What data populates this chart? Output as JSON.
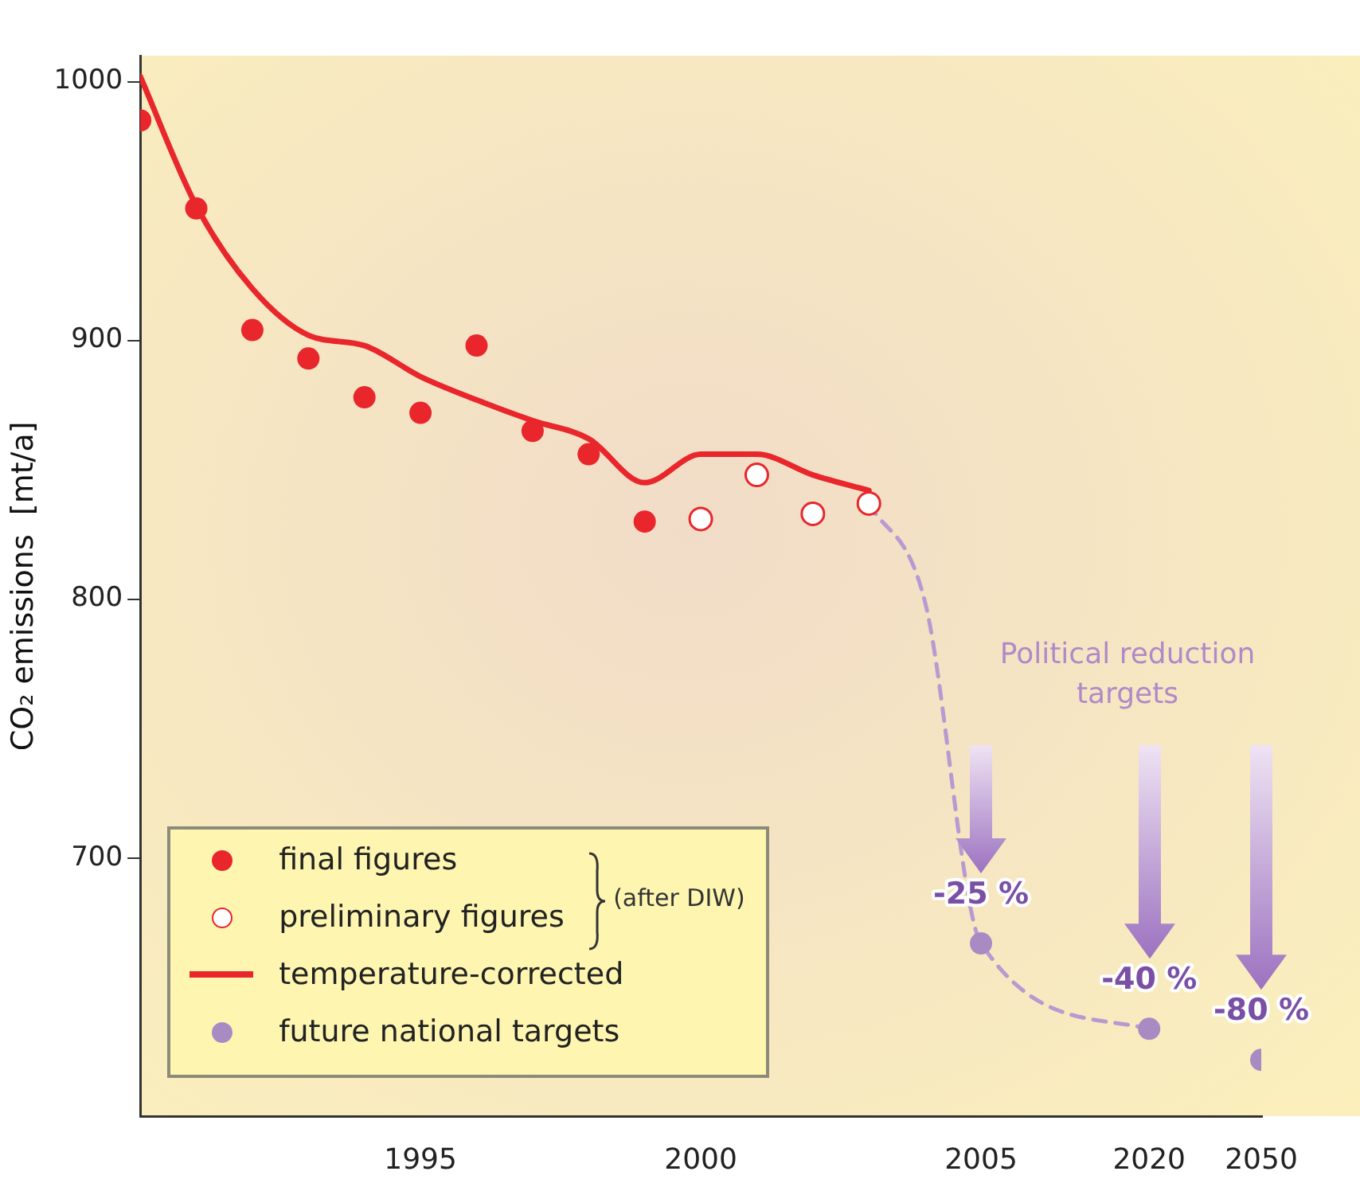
{
  "chart_data": {
    "type": "line",
    "ylabel": "CO₂ emissions  [mt/a]",
    "categories": [
      null,
      null,
      null,
      null,
      null,
      "1995",
      null,
      null,
      null,
      null,
      "2000",
      null,
      null,
      null,
      null,
      "2005",
      null,
      null,
      "2020",
      null,
      "2050"
    ],
    "ylim": [
      600,
      1010
    ],
    "yticks": [
      700,
      800,
      900,
      1000
    ],
    "grid": false,
    "legend": "bottom left",
    "series": [
      {
        "name": "final figures",
        "type": "scatter",
        "marker": "circle",
        "color": "#e8262b",
        "values": [
          985,
          951,
          904,
          893,
          878,
          872,
          898,
          865,
          856,
          830,
          null,
          null,
          null,
          null,
          null,
          null,
          null,
          null,
          null,
          null,
          null
        ]
      },
      {
        "name": "preliminary figures",
        "type": "scatter",
        "marker": "circle",
        "color": "#ffffff",
        "values": [
          null,
          null,
          null,
          null,
          null,
          null,
          null,
          null,
          null,
          null,
          831,
          848,
          833,
          837,
          null,
          null,
          null,
          null,
          null,
          null,
          null
        ]
      },
      {
        "name": "temperature-corrected",
        "type": "line",
        "marker": "none",
        "color": "#e8262b",
        "values": [
          1002,
          952,
          920,
          902,
          898,
          886,
          877,
          869,
          862,
          845,
          856,
          856,
          848,
          842,
          null,
          null,
          null,
          null,
          null,
          null,
          null
        ]
      },
      {
        "name": "future national targets",
        "type": "scatter",
        "marker": "circle",
        "color": "#a98bc4",
        "values": [
          null,
          null,
          null,
          null,
          null,
          null,
          null,
          null,
          null,
          null,
          null,
          null,
          null,
          null,
          null,
          667,
          null,
          null,
          634,
          null,
          622
        ]
      },
      {
        "type": "line",
        "marker": "none",
        "line_style": "dashed",
        "color": "#b99ad0",
        "values": [
          null,
          null,
          null,
          null,
          null,
          null,
          null,
          null,
          null,
          null,
          null,
          null,
          null,
          837,
          799,
          667,
          null,
          null,
          634,
          null,
          null
        ]
      }
    ],
    "annotations": [
      "(after DIW)",
      "Political reduction targets",
      "-25 %",
      "-40 %",
      "-80 %"
    ]
  }
}
